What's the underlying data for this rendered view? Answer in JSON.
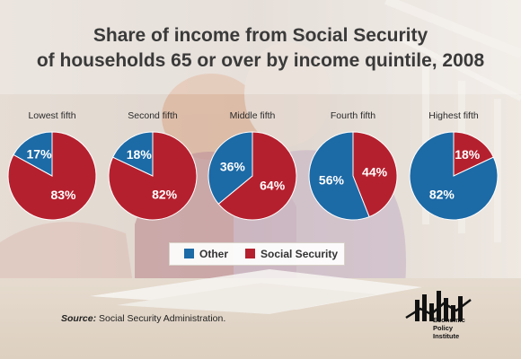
{
  "title_line1": "Share of income from Social Security",
  "title_line2": "of households 65 or over by income quintile, 2008",
  "legend": {
    "other": "Other",
    "social_security": "Social Security"
  },
  "source": {
    "label": "Source:",
    "text": "Social Security Administration."
  },
  "logo": {
    "line1": "Economic",
    "line2": "Policy",
    "line3": "Institute"
  },
  "colors": {
    "other": "#1c6aa6",
    "social_security": "#b5202e"
  },
  "chart_data": {
    "type": "pie",
    "title": "Share of income from Social Security of households 65 or over by income quintile, 2008",
    "series_names": [
      "Other",
      "Social Security"
    ],
    "legend_position": "bottom",
    "pies": [
      {
        "name": "Lowest fifth",
        "other": 17,
        "social_security": 83,
        "other_label": "17%",
        "ss_label": "83%"
      },
      {
        "name": "Second fifth",
        "other": 18,
        "social_security": 82,
        "other_label": "18%",
        "ss_label": "82%"
      },
      {
        "name": "Middle fifth",
        "other": 36,
        "social_security": 64,
        "other_label": "36%",
        "ss_label": "64%"
      },
      {
        "name": "Fourth fifth",
        "other": 56,
        "social_security": 44,
        "other_label": "56%",
        "ss_label": "44%"
      },
      {
        "name": "Highest fifth",
        "other": 82,
        "social_security": 18,
        "other_label": "82%",
        "ss_label": "18%"
      }
    ]
  }
}
